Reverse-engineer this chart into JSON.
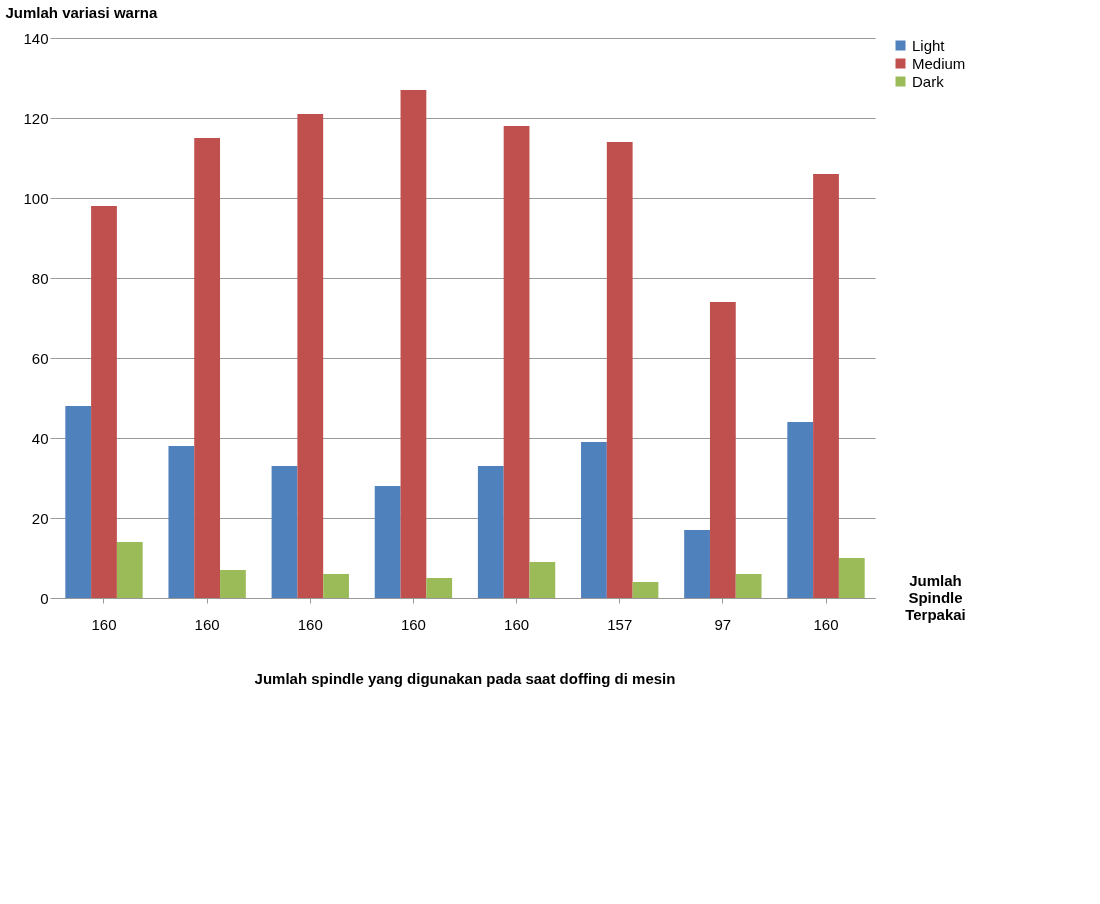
{
  "chart_data": {
    "type": "bar",
    "title": "Jumlah spindle yang digunakan pada saat doffing di mesin",
    "ylabel": "Jumlah variasi warna",
    "xlabel": "Jumlah Spindle Terpakai",
    "categories": [
      "160",
      "160",
      "160",
      "160",
      "160",
      "157",
      "97",
      "160"
    ],
    "series": [
      {
        "name": "Light",
        "color": "#4f81bd",
        "values": [
          48,
          38,
          33,
          28,
          33,
          39,
          17,
          44
        ]
      },
      {
        "name": "Medium",
        "color": "#c0504d",
        "values": [
          98,
          115,
          121,
          127,
          118,
          114,
          74,
          106
        ]
      },
      {
        "name": "Dark",
        "color": "#9bbb59",
        "values": [
          14,
          7,
          6,
          5,
          9,
          4,
          6,
          10
        ]
      }
    ],
    "ylim": [
      0,
      140
    ],
    "yticks": [
      0,
      20,
      40,
      60,
      80,
      100,
      120,
      140
    ],
    "grid": "y",
    "legend": "right"
  }
}
